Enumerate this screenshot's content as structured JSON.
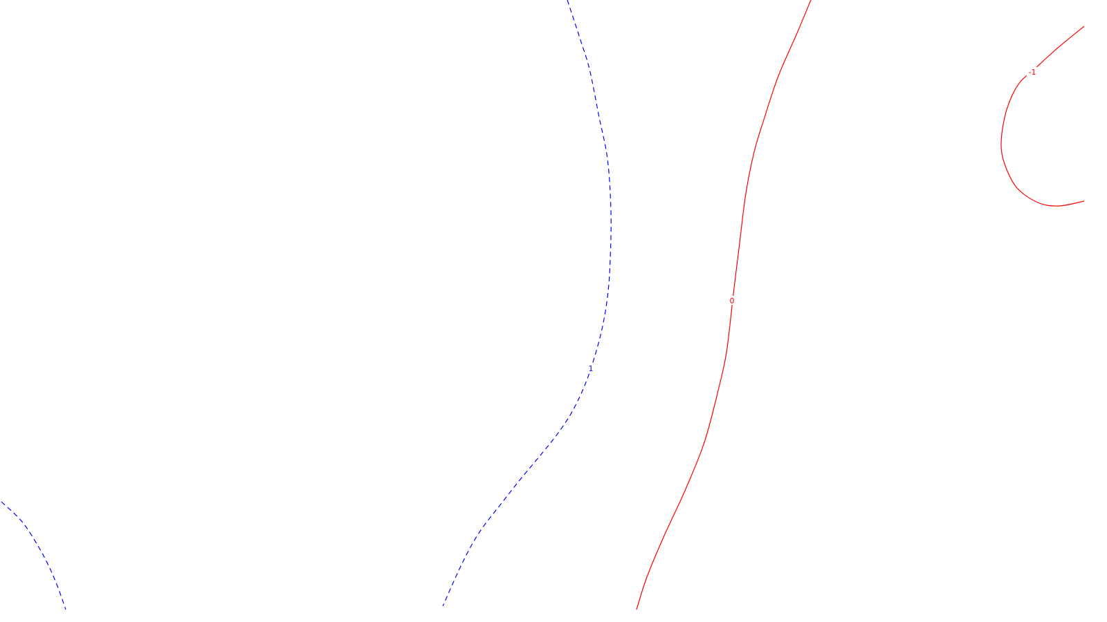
{
  "chart_data": {
    "type": "contour",
    "title": "",
    "xlabel": "",
    "ylabel": "",
    "axes_visible": false,
    "grid": false,
    "legend": "none",
    "contours": [
      {
        "level": 1,
        "label": "1",
        "color": "#0000ff",
        "line_style": "dashed",
        "paths": [
          [
            [
              820,
              0
            ],
            [
              838,
              55
            ],
            [
              852,
              100
            ],
            [
              865,
              165
            ],
            [
              878,
              230
            ],
            [
              883,
              305
            ],
            [
              882,
              375
            ],
            [
              878,
              430
            ],
            [
              868,
              485
            ],
            [
              850,
              545
            ],
            [
              830,
              590
            ],
            [
              810,
              622
            ],
            [
              785,
              654
            ],
            [
              755,
              690
            ],
            [
              725,
              728
            ],
            [
              693,
              770
            ],
            [
              668,
              815
            ],
            [
              640,
              877
            ]
          ],
          [
            [
              2,
              726
            ],
            [
              32,
              755
            ],
            [
              55,
              790
            ],
            [
              70,
              818
            ],
            [
              83,
              848
            ],
            [
              95,
              882
            ]
          ]
        ],
        "label_position": [
          854,
          533
        ]
      },
      {
        "level": 0,
        "label": "0",
        "color": "#ff0000",
        "line_style": "solid",
        "paths": [
          [
            [
              1172,
              0
            ],
            [
              1152,
              48
            ],
            [
              1125,
              110
            ],
            [
              1105,
              170
            ],
            [
              1090,
              220
            ],
            [
              1078,
              280
            ],
            [
              1068,
              360
            ],
            [
              1060,
              425
            ],
            [
              1050,
              510
            ],
            [
              1038,
              565
            ],
            [
              1018,
              640
            ],
            [
              990,
              710
            ],
            [
              960,
              775
            ],
            [
              935,
              835
            ],
            [
              920,
              882
            ]
          ]
        ],
        "label_position": [
          1058,
          435
        ]
      },
      {
        "level": -1,
        "label": "-1",
        "color": "#ff0000",
        "line_style": "solid",
        "paths": [
          [
            [
              1567,
              38
            ],
            [
              1528,
              70
            ],
            [
              1494,
              101
            ],
            [
              1475,
              118
            ],
            [
              1462,
              140
            ],
            [
              1452,
              170
            ],
            [
              1447,
              210
            ],
            [
              1453,
              240
            ],
            [
              1470,
              272
            ],
            [
              1500,
              293
            ],
            [
              1530,
              298
            ],
            [
              1567,
              291
            ]
          ]
        ],
        "label_position": [
          1492,
          104
        ]
      }
    ]
  }
}
